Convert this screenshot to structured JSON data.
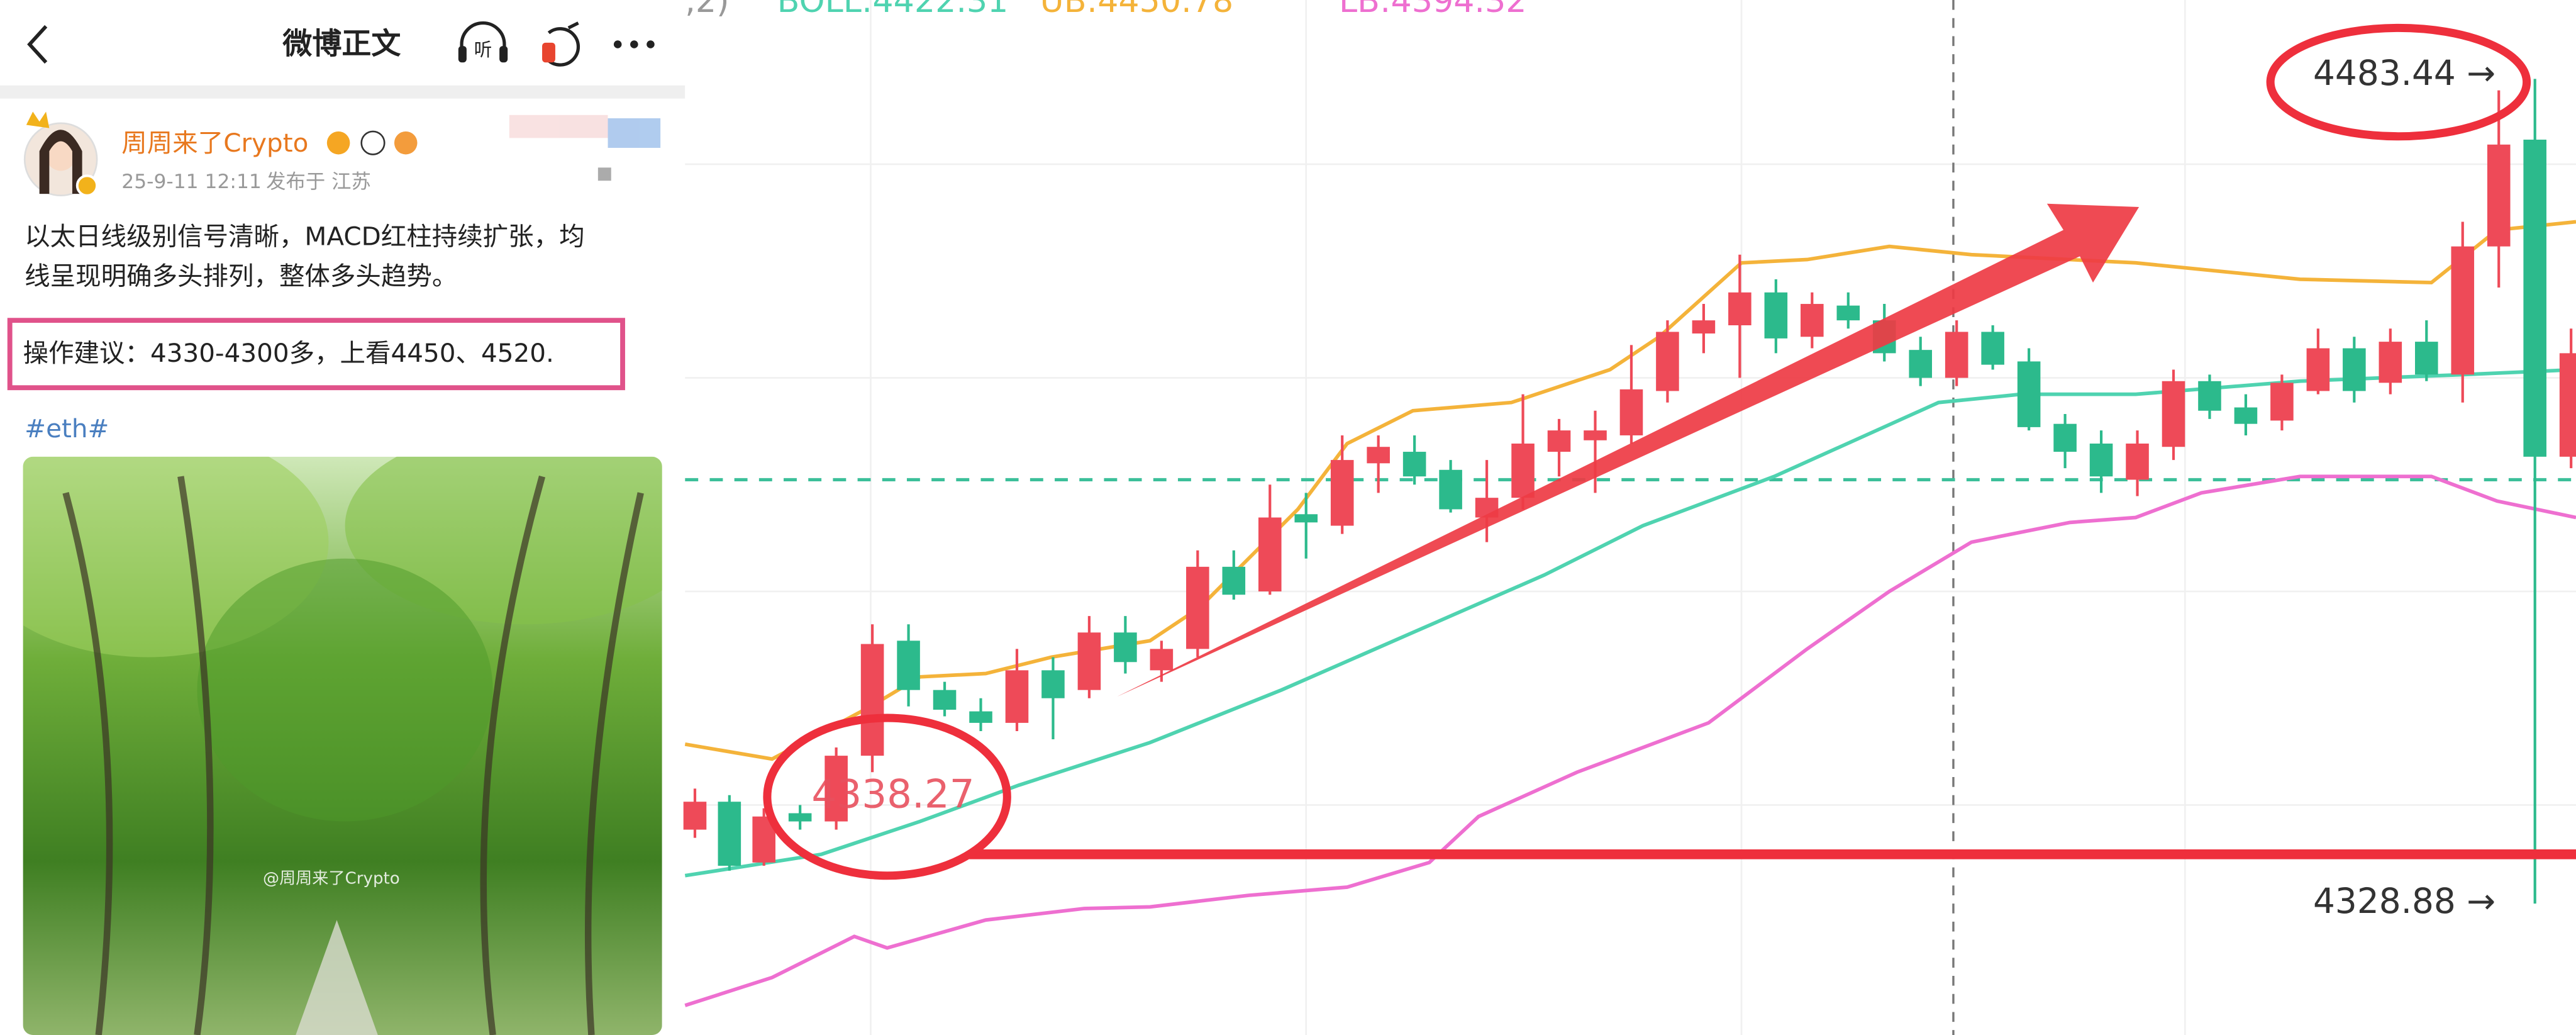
{
  "header": {
    "title": "微博正文",
    "listen": "听"
  },
  "post": {
    "author": "周周来了Crypto",
    "time": "25-9-11 12:11",
    "location": "发布于 江苏",
    "text_lines": [
      "以太日线级别信号清晰，MACD红柱持续扩张，均",
      "线呈现明确多头排列，整体多头趋势。"
    ],
    "advice": "操作建议：4330-4300多，上看4450、4520.",
    "tag": "#eth#",
    "watermark": "@周周来了Crypto"
  },
  "chart_image": {
    "params": ",2)",
    "boll": "BOLL:4422.31",
    "ub": "UB:4450.78",
    "lb": "LB:4394.32",
    "high_label": "4483.44 →",
    "low_label": "4328.88 →",
    "mark_label": "4338.27"
  }
}
